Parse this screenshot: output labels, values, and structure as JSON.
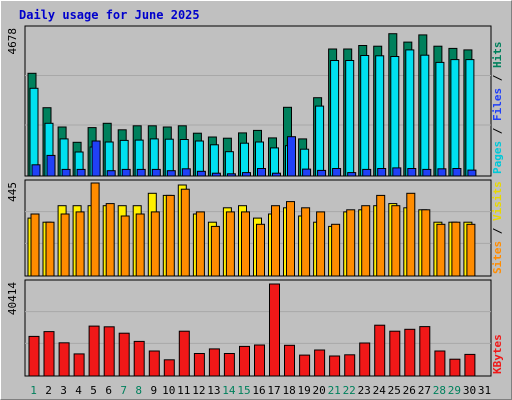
{
  "title": "Daily usage for June 2025",
  "chart_data": [
    {
      "type": "bar",
      "title": "Daily usage for June 2025",
      "categories": [
        "1",
        "2",
        "3",
        "4",
        "5",
        "6",
        "7",
        "8",
        "9",
        "10",
        "11",
        "12",
        "13",
        "14",
        "15",
        "16",
        "17",
        "18",
        "19",
        "20",
        "21",
        "22",
        "23",
        "24",
        "25",
        "26",
        "27",
        "28",
        "29",
        "30",
        "31"
      ],
      "weekend_days": [
        1,
        7,
        8,
        14,
        15,
        21,
        22,
        28,
        29
      ],
      "ymax_label": "4678",
      "ylim": [
        0,
        4678
      ],
      "ylabel_parts": [
        "Pages",
        "Files",
        "Hits"
      ],
      "series": [
        {
          "name": "Hits",
          "color": "#00805c",
          "values": [
            3290,
            2190,
            1570,
            1080,
            1550,
            1690,
            1480,
            1610,
            1610,
            1570,
            1610,
            1370,
            1250,
            1210,
            1380,
            1460,
            1220,
            2200,
            1190,
            2510,
            4070,
            4070,
            4180,
            4160,
            4560,
            4290,
            4520,
            4160,
            4090,
            4040,
            0
          ]
        },
        {
          "name": "Files",
          "color": "#00e0f0",
          "values": [
            2810,
            1690,
            1190,
            770,
            930,
            1090,
            1140,
            1150,
            1190,
            1180,
            1170,
            1120,
            1000,
            780,
            1050,
            1090,
            900,
            970,
            860,
            2240,
            3700,
            3700,
            3860,
            3850,
            3830,
            4040,
            3870,
            3640,
            3730,
            3730,
            0
          ]
        },
        {
          "name": "Pages",
          "color": "#2040f8",
          "values": [
            360,
            660,
            210,
            210,
            1120,
            170,
            210,
            210,
            210,
            170,
            230,
            150,
            90,
            70,
            110,
            240,
            90,
            1260,
            220,
            180,
            240,
            110,
            210,
            240,
            260,
            240,
            210,
            230,
            240,
            190,
            0
          ]
        }
      ]
    },
    {
      "type": "bar",
      "ymax_label": "445",
      "ylim": [
        0,
        445
      ],
      "ylabel_parts": [
        "Sites",
        "Visits"
      ],
      "series": [
        {
          "name": "Visits",
          "color": "#fff000",
          "values": [
            280,
            260,
            340,
            340,
            340,
            340,
            340,
            340,
            400,
            390,
            440,
            300,
            260,
            330,
            340,
            280,
            300,
            330,
            290,
            260,
            240,
            310,
            320,
            340,
            350,
            330,
            320,
            260,
            260,
            260,
            0
          ]
        },
        {
          "name": "Sites",
          "color": "#ff8c00",
          "values": [
            300,
            260,
            300,
            310,
            450,
            350,
            290,
            300,
            310,
            390,
            420,
            310,
            240,
            310,
            310,
            250,
            340,
            360,
            330,
            310,
            250,
            320,
            340,
            390,
            340,
            400,
            320,
            250,
            260,
            250,
            0
          ]
        }
      ]
    },
    {
      "type": "bar",
      "ymax_label": "40414",
      "ylim": [
        0,
        40414
      ],
      "ylabel_parts": [
        "KBytes"
      ],
      "series": [
        {
          "name": "KBytes",
          "color": "#f01818",
          "values": [
            17400,
            19500,
            14600,
            9700,
            21900,
            21600,
            18800,
            15200,
            11000,
            7100,
            19700,
            9900,
            11900,
            9900,
            13000,
            13600,
            40400,
            13500,
            9200,
            11400,
            8800,
            9300,
            14500,
            22300,
            19700,
            20500,
            21700,
            11000,
            7400,
            9500,
            0
          ]
        }
      ]
    }
  ]
}
